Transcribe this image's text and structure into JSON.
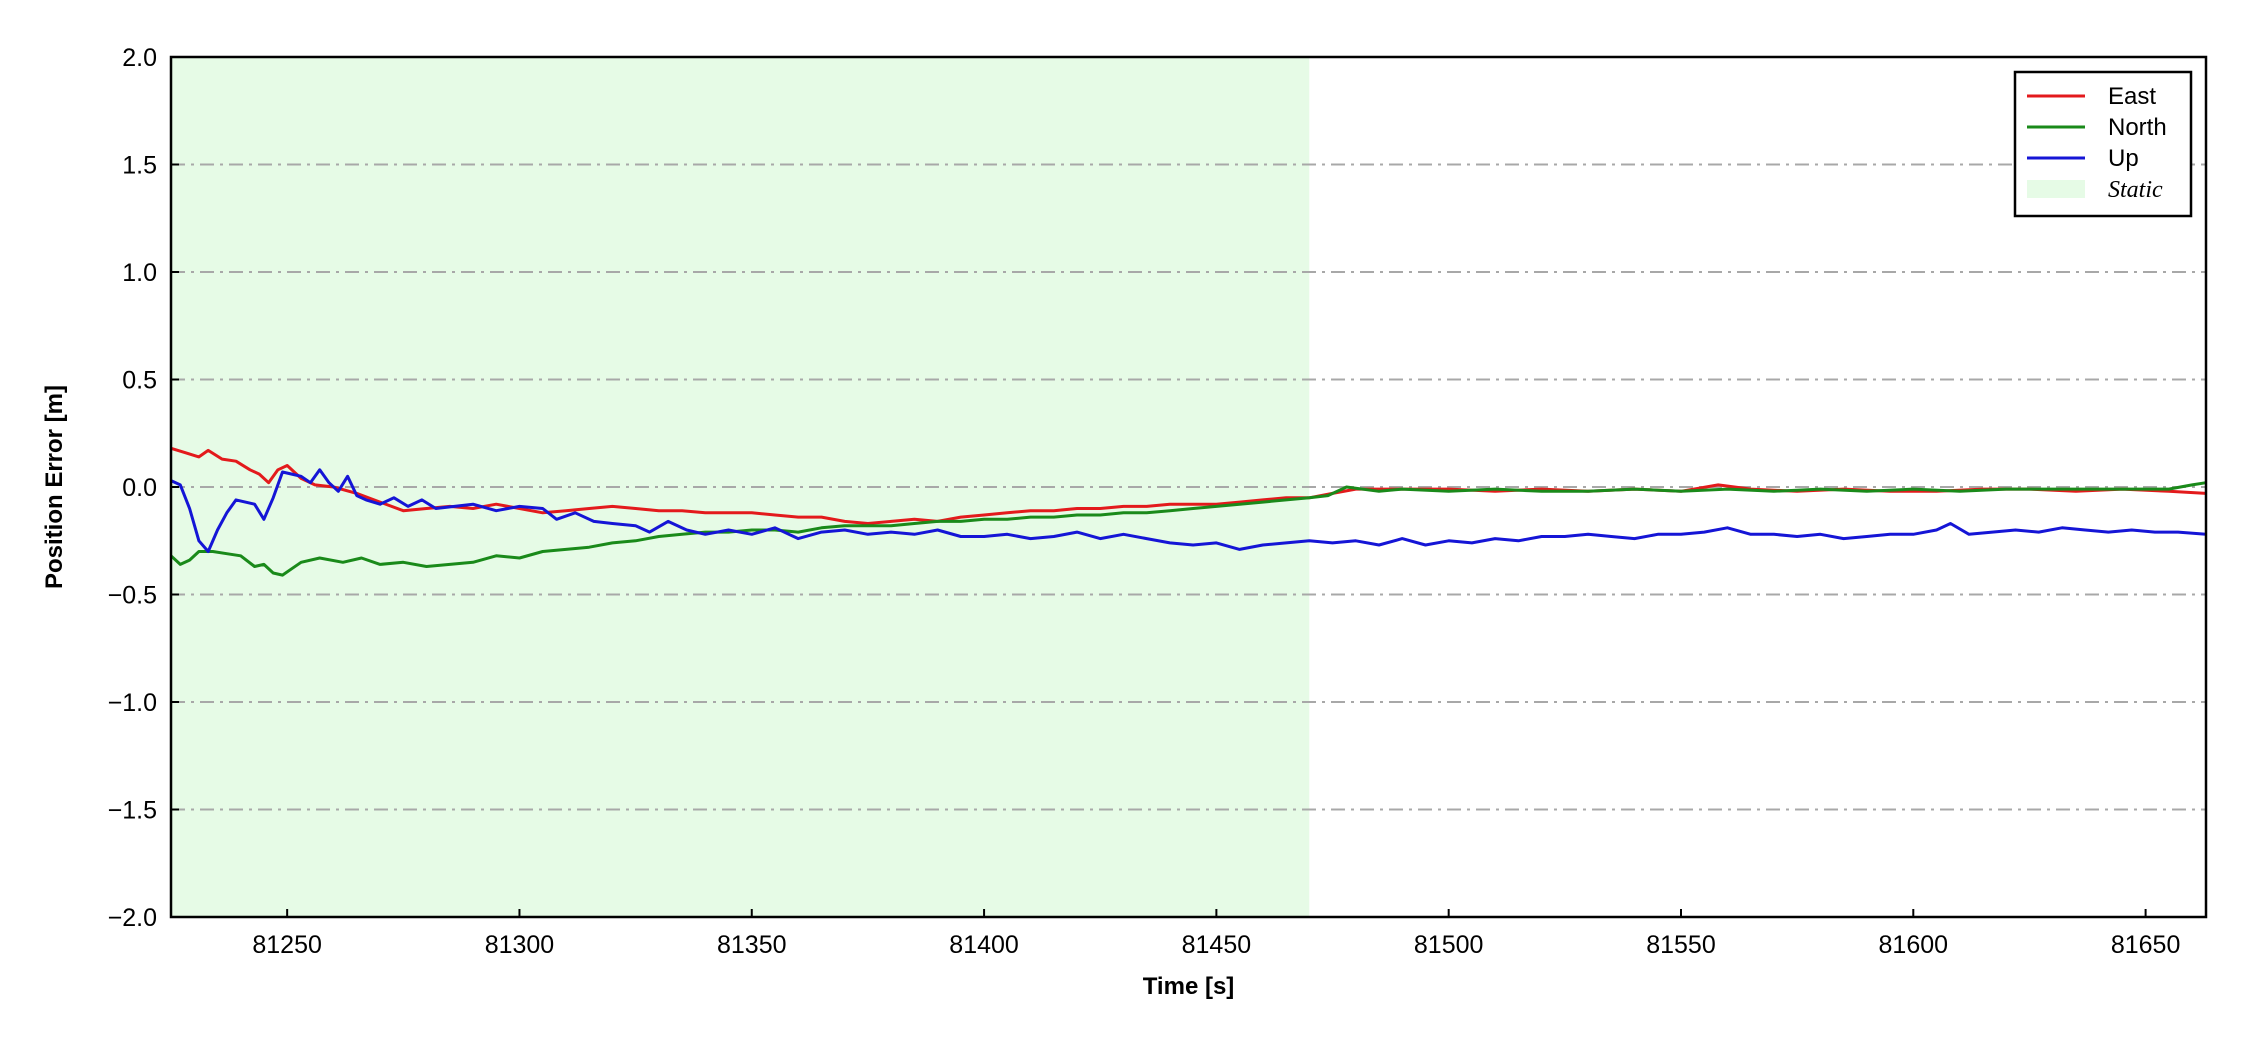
{
  "chart_data": {
    "type": "line",
    "xlabel": "Time [s]",
    "ylabel": "Position Error [m]",
    "xlim": [
      81225,
      81663
    ],
    "ylim": [
      -2.0,
      2.0
    ],
    "x_ticks": [
      81250,
      81300,
      81350,
      81400,
      81450,
      81500,
      81550,
      81600,
      81650
    ],
    "y_ticks": [
      2.0,
      1.5,
      1.0,
      0.5,
      0.0,
      -0.5,
      -1.0,
      -1.5,
      -2.0
    ],
    "y_tick_labels": [
      "2.0",
      "1.5",
      "1.0",
      "0.5",
      "0.0",
      "−0.5",
      "−1.0",
      "−1.5",
      "−2.0"
    ],
    "grid": "horizontal dash-dot",
    "legend_position": "top-right",
    "shaded_regions": [
      {
        "name": "Static",
        "x_start": 81225,
        "x_end": 81470,
        "color": "#e6fbe6"
      }
    ],
    "series": [
      {
        "name": "East",
        "color": "#e31a1c",
        "points": [
          [
            81225,
            0.18
          ],
          [
            81228,
            0.16
          ],
          [
            81231,
            0.14
          ],
          [
            81233,
            0.17
          ],
          [
            81236,
            0.13
          ],
          [
            81239,
            0.12
          ],
          [
            81242,
            0.08
          ],
          [
            81244,
            0.06
          ],
          [
            81246,
            0.02
          ],
          [
            81248,
            0.08
          ],
          [
            81250,
            0.1
          ],
          [
            81253,
            0.04
          ],
          [
            81256,
            0.01
          ],
          [
            81260,
            0.0
          ],
          [
            81265,
            -0.03
          ],
          [
            81270,
            -0.07
          ],
          [
            81275,
            -0.11
          ],
          [
            81280,
            -0.1
          ],
          [
            81285,
            -0.09
          ],
          [
            81290,
            -0.1
          ],
          [
            81295,
            -0.08
          ],
          [
            81300,
            -0.1
          ],
          [
            81305,
            -0.12
          ],
          [
            81310,
            -0.11
          ],
          [
            81315,
            -0.1
          ],
          [
            81320,
            -0.09
          ],
          [
            81325,
            -0.1
          ],
          [
            81330,
            -0.11
          ],
          [
            81335,
            -0.11
          ],
          [
            81340,
            -0.12
          ],
          [
            81345,
            -0.12
          ],
          [
            81350,
            -0.12
          ],
          [
            81355,
            -0.13
          ],
          [
            81360,
            -0.14
          ],
          [
            81365,
            -0.14
          ],
          [
            81370,
            -0.16
          ],
          [
            81375,
            -0.17
          ],
          [
            81380,
            -0.16
          ],
          [
            81385,
            -0.15
          ],
          [
            81390,
            -0.16
          ],
          [
            81395,
            -0.14
          ],
          [
            81400,
            -0.13
          ],
          [
            81405,
            -0.12
          ],
          [
            81410,
            -0.11
          ],
          [
            81415,
            -0.11
          ],
          [
            81420,
            -0.1
          ],
          [
            81425,
            -0.1
          ],
          [
            81430,
            -0.09
          ],
          [
            81435,
            -0.09
          ],
          [
            81440,
            -0.08
          ],
          [
            81445,
            -0.08
          ],
          [
            81450,
            -0.08
          ],
          [
            81455,
            -0.07
          ],
          [
            81460,
            -0.06
          ],
          [
            81465,
            -0.05
          ],
          [
            81470,
            -0.05
          ],
          [
            81475,
            -0.03
          ],
          [
            81480,
            -0.01
          ],
          [
            81490,
            -0.01
          ],
          [
            81500,
            -0.01
          ],
          [
            81510,
            -0.02
          ],
          [
            81520,
            -0.01
          ],
          [
            81530,
            -0.02
          ],
          [
            81540,
            -0.01
          ],
          [
            81550,
            -0.02
          ],
          [
            81558,
            0.01
          ],
          [
            81565,
            -0.01
          ],
          [
            81575,
            -0.02
          ],
          [
            81585,
            -0.01
          ],
          [
            81595,
            -0.02
          ],
          [
            81605,
            -0.02
          ],
          [
            81615,
            -0.01
          ],
          [
            81625,
            -0.01
          ],
          [
            81635,
            -0.02
          ],
          [
            81645,
            -0.01
          ],
          [
            81655,
            -0.02
          ],
          [
            81663,
            -0.03
          ]
        ]
      },
      {
        "name": "North",
        "color": "#1a8a1a",
        "points": [
          [
            81225,
            -0.32
          ],
          [
            81227,
            -0.36
          ],
          [
            81229,
            -0.34
          ],
          [
            81231,
            -0.3
          ],
          [
            81234,
            -0.3
          ],
          [
            81237,
            -0.31
          ],
          [
            81240,
            -0.32
          ],
          [
            81243,
            -0.37
          ],
          [
            81245,
            -0.36
          ],
          [
            81247,
            -0.4
          ],
          [
            81249,
            -0.41
          ],
          [
            81251,
            -0.38
          ],
          [
            81253,
            -0.35
          ],
          [
            81257,
            -0.33
          ],
          [
            81262,
            -0.35
          ],
          [
            81266,
            -0.33
          ],
          [
            81270,
            -0.36
          ],
          [
            81275,
            -0.35
          ],
          [
            81280,
            -0.37
          ],
          [
            81285,
            -0.36
          ],
          [
            81290,
            -0.35
          ],
          [
            81295,
            -0.32
          ],
          [
            81300,
            -0.33
          ],
          [
            81305,
            -0.3
          ],
          [
            81310,
            -0.29
          ],
          [
            81315,
            -0.28
          ],
          [
            81320,
            -0.26
          ],
          [
            81325,
            -0.25
          ],
          [
            81330,
            -0.23
          ],
          [
            81335,
            -0.22
          ],
          [
            81340,
            -0.21
          ],
          [
            81345,
            -0.21
          ],
          [
            81350,
            -0.2
          ],
          [
            81355,
            -0.2
          ],
          [
            81360,
            -0.21
          ],
          [
            81365,
            -0.19
          ],
          [
            81370,
            -0.18
          ],
          [
            81375,
            -0.18
          ],
          [
            81380,
            -0.18
          ],
          [
            81385,
            -0.17
          ],
          [
            81390,
            -0.16
          ],
          [
            81395,
            -0.16
          ],
          [
            81400,
            -0.15
          ],
          [
            81405,
            -0.15
          ],
          [
            81410,
            -0.14
          ],
          [
            81415,
            -0.14
          ],
          [
            81420,
            -0.13
          ],
          [
            81425,
            -0.13
          ],
          [
            81430,
            -0.12
          ],
          [
            81435,
            -0.12
          ],
          [
            81440,
            -0.11
          ],
          [
            81445,
            -0.1
          ],
          [
            81450,
            -0.09
          ],
          [
            81455,
            -0.08
          ],
          [
            81460,
            -0.07
          ],
          [
            81465,
            -0.06
          ],
          [
            81470,
            -0.05
          ],
          [
            81474,
            -0.04
          ],
          [
            81478,
            0.0
          ],
          [
            81485,
            -0.02
          ],
          [
            81490,
            -0.01
          ],
          [
            81500,
            -0.02
          ],
          [
            81510,
            -0.01
          ],
          [
            81520,
            -0.02
          ],
          [
            81530,
            -0.02
          ],
          [
            81540,
            -0.01
          ],
          [
            81550,
            -0.02
          ],
          [
            81560,
            -0.01
          ],
          [
            81570,
            -0.02
          ],
          [
            81580,
            -0.01
          ],
          [
            81590,
            -0.02
          ],
          [
            81600,
            -0.01
          ],
          [
            81610,
            -0.02
          ],
          [
            81620,
            -0.01
          ],
          [
            81630,
            -0.01
          ],
          [
            81640,
            -0.01
          ],
          [
            81650,
            -0.01
          ],
          [
            81655,
            -0.01
          ],
          [
            81660,
            0.01
          ],
          [
            81663,
            0.02
          ]
        ]
      },
      {
        "name": "Up",
        "color": "#1515d6",
        "points": [
          [
            81225,
            0.03
          ],
          [
            81227,
            0.01
          ],
          [
            81229,
            -0.1
          ],
          [
            81231,
            -0.25
          ],
          [
            81233,
            -0.3
          ],
          [
            81235,
            -0.2
          ],
          [
            81237,
            -0.12
          ],
          [
            81239,
            -0.06
          ],
          [
            81241,
            -0.07
          ],
          [
            81243,
            -0.08
          ],
          [
            81245,
            -0.15
          ],
          [
            81247,
            -0.05
          ],
          [
            81249,
            0.07
          ],
          [
            81251,
            0.06
          ],
          [
            81253,
            0.05
          ],
          [
            81255,
            0.02
          ],
          [
            81257,
            0.08
          ],
          [
            81259,
            0.02
          ],
          [
            81261,
            -0.02
          ],
          [
            81263,
            0.05
          ],
          [
            81265,
            -0.04
          ],
          [
            81267,
            -0.06
          ],
          [
            81270,
            -0.08
          ],
          [
            81273,
            -0.05
          ],
          [
            81276,
            -0.09
          ],
          [
            81279,
            -0.06
          ],
          [
            81282,
            -0.1
          ],
          [
            81286,
            -0.09
          ],
          [
            81290,
            -0.08
          ],
          [
            81295,
            -0.11
          ],
          [
            81300,
            -0.09
          ],
          [
            81305,
            -0.1
          ],
          [
            81308,
            -0.15
          ],
          [
            81312,
            -0.12
          ],
          [
            81316,
            -0.16
          ],
          [
            81320,
            -0.17
          ],
          [
            81325,
            -0.18
          ],
          [
            81328,
            -0.21
          ],
          [
            81332,
            -0.16
          ],
          [
            81336,
            -0.2
          ],
          [
            81340,
            -0.22
          ],
          [
            81345,
            -0.2
          ],
          [
            81350,
            -0.22
          ],
          [
            81355,
            -0.19
          ],
          [
            81360,
            -0.24
          ],
          [
            81365,
            -0.21
          ],
          [
            81370,
            -0.2
          ],
          [
            81375,
            -0.22
          ],
          [
            81380,
            -0.21
          ],
          [
            81385,
            -0.22
          ],
          [
            81390,
            -0.2
          ],
          [
            81395,
            -0.23
          ],
          [
            81400,
            -0.23
          ],
          [
            81405,
            -0.22
          ],
          [
            81410,
            -0.24
          ],
          [
            81415,
            -0.23
          ],
          [
            81420,
            -0.21
          ],
          [
            81425,
            -0.24
          ],
          [
            81430,
            -0.22
          ],
          [
            81435,
            -0.24
          ],
          [
            81440,
            -0.26
          ],
          [
            81445,
            -0.27
          ],
          [
            81450,
            -0.26
          ],
          [
            81455,
            -0.29
          ],
          [
            81460,
            -0.27
          ],
          [
            81465,
            -0.26
          ],
          [
            81470,
            -0.25
          ],
          [
            81475,
            -0.26
          ],
          [
            81480,
            -0.25
          ],
          [
            81485,
            -0.27
          ],
          [
            81490,
            -0.24
          ],
          [
            81495,
            -0.27
          ],
          [
            81500,
            -0.25
          ],
          [
            81505,
            -0.26
          ],
          [
            81510,
            -0.24
          ],
          [
            81515,
            -0.25
          ],
          [
            81520,
            -0.23
          ],
          [
            81525,
            -0.23
          ],
          [
            81530,
            -0.22
          ],
          [
            81535,
            -0.23
          ],
          [
            81540,
            -0.24
          ],
          [
            81545,
            -0.22
          ],
          [
            81550,
            -0.22
          ],
          [
            81555,
            -0.21
          ],
          [
            81560,
            -0.19
          ],
          [
            81565,
            -0.22
          ],
          [
            81570,
            -0.22
          ],
          [
            81575,
            -0.23
          ],
          [
            81580,
            -0.22
          ],
          [
            81585,
            -0.24
          ],
          [
            81590,
            -0.23
          ],
          [
            81595,
            -0.22
          ],
          [
            81600,
            -0.22
          ],
          [
            81605,
            -0.2
          ],
          [
            81608,
            -0.17
          ],
          [
            81612,
            -0.22
          ],
          [
            81617,
            -0.21
          ],
          [
            81622,
            -0.2
          ],
          [
            81627,
            -0.21
          ],
          [
            81632,
            -0.19
          ],
          [
            81637,
            -0.2
          ],
          [
            81642,
            -0.21
          ],
          [
            81647,
            -0.2
          ],
          [
            81652,
            -0.21
          ],
          [
            81657,
            -0.21
          ],
          [
            81663,
            -0.22
          ]
        ]
      }
    ]
  }
}
